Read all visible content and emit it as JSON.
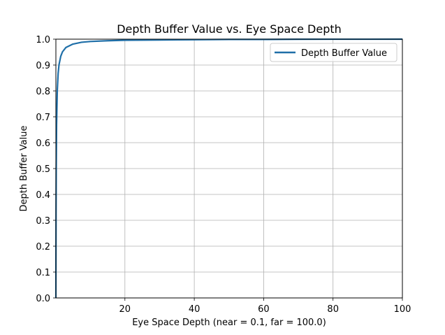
{
  "chart_data": {
    "type": "line",
    "title": "Depth Buffer Value vs. Eye Space Depth",
    "xlabel": "Eye Space Depth (near = 0.1, far = 100.0)",
    "ylabel": "Depth Buffer Value",
    "xlim": [
      0.1,
      100
    ],
    "ylim": [
      0.0,
      1.0
    ],
    "x_ticks": [
      20,
      40,
      60,
      80,
      100
    ],
    "x_tick_labels": [
      "20",
      "40",
      "60",
      "80",
      "100"
    ],
    "y_ticks": [
      0.0,
      0.1,
      0.2,
      0.3,
      0.4,
      0.5,
      0.6,
      0.7,
      0.8,
      0.9,
      1.0
    ],
    "y_tick_labels": [
      "0.0",
      "0.1",
      "0.2",
      "0.3",
      "0.4",
      "0.5",
      "0.6",
      "0.7",
      "0.8",
      "0.9",
      "1.0"
    ],
    "grid": true,
    "legend_position": "top-right",
    "series": [
      {
        "name": "Depth Buffer Value",
        "color": "#1f6fa8",
        "x": [
          0.1,
          0.15,
          0.2,
          0.3,
          0.5,
          0.75,
          1,
          1.5,
          2,
          3,
          5,
          7.5,
          10,
          15,
          20,
          30,
          40,
          50,
          60,
          70,
          80,
          90,
          100
        ],
        "y": [
          0.0,
          0.334,
          0.501,
          0.668,
          0.801,
          0.868,
          0.901,
          0.934,
          0.951,
          0.968,
          0.981,
          0.988,
          0.991,
          0.994,
          0.996,
          0.997,
          0.998,
          0.999,
          0.999,
          0.9996,
          0.9998,
          0.9999,
          1.0
        ]
      }
    ]
  }
}
